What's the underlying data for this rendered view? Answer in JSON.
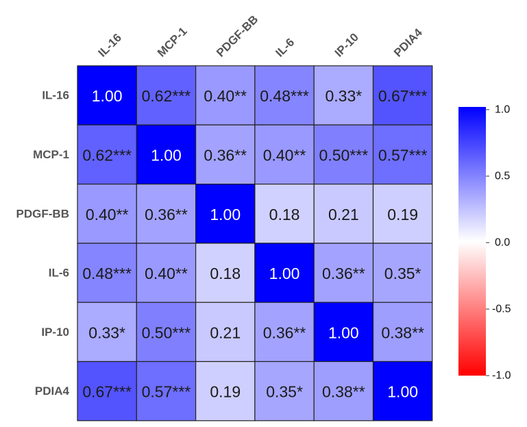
{
  "chart_data": {
    "type": "heatmap",
    "variables": [
      "IL-16",
      "MCP-1",
      "PDGF-BB",
      "IL-6",
      "IP-10",
      "PDIA4"
    ],
    "matrix": [
      [
        1.0,
        0.62,
        0.4,
        0.48,
        0.33,
        0.67
      ],
      [
        0.62,
        1.0,
        0.36,
        0.4,
        0.5,
        0.57
      ],
      [
        0.4,
        0.36,
        1.0,
        0.18,
        0.21,
        0.19
      ],
      [
        0.48,
        0.4,
        0.18,
        1.0,
        0.36,
        0.35
      ],
      [
        0.33,
        0.5,
        0.21,
        0.36,
        1.0,
        0.38
      ],
      [
        0.67,
        0.57,
        0.19,
        0.35,
        0.38,
        1.0
      ]
    ],
    "labels": [
      [
        "1.00",
        "0.62***",
        "0.40**",
        "0.48***",
        "0.33*",
        "0.67***"
      ],
      [
        "0.62***",
        "1.00",
        "0.36**",
        "0.40**",
        "0.50***",
        "0.57***"
      ],
      [
        "0.40**",
        "0.36**",
        "1.00",
        "0.18",
        "0.21",
        "0.19"
      ],
      [
        "0.48***",
        "0.40**",
        "0.18",
        "1.00",
        "0.36**",
        "0.35*"
      ],
      [
        "0.33*",
        "0.50***",
        "0.21",
        "0.36**",
        "1.00",
        "0.38**"
      ],
      [
        "0.67***",
        "0.57***",
        "0.19",
        "0.35*",
        "0.38**",
        "1.00"
      ]
    ],
    "value_range": [
      -1.0,
      1.0
    ],
    "colorscale": {
      "low": "#ff0000",
      "mid": "#ffffff",
      "high": "#0000ff"
    },
    "legend": {
      "placement": "right",
      "ticks": [
        "1.0",
        "0.5",
        "0.0",
        "-0.5",
        "-1.0"
      ],
      "tick_values": [
        1.0,
        0.5,
        0.0,
        -0.5,
        -1.0
      ]
    }
  }
}
